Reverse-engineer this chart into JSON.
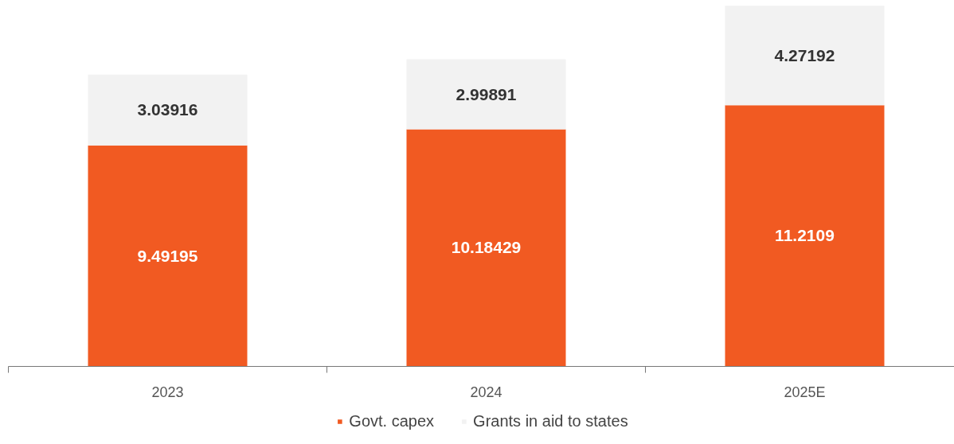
{
  "chart_data": {
    "type": "bar",
    "stacked": true,
    "categories": [
      "2023",
      "2024",
      "2025E"
    ],
    "series": [
      {
        "name": "Govt. capex",
        "color": "#f15a22",
        "values": [
          9.49195,
          10.18429,
          11.2109
        ]
      },
      {
        "name": "Grants in aid to states",
        "color": "#f2f2f2",
        "values": [
          3.03916,
          2.99891,
          4.27192
        ]
      }
    ],
    "data_labels": true,
    "legend": "bottom",
    "grid": false,
    "tick_labels": "x"
  }
}
